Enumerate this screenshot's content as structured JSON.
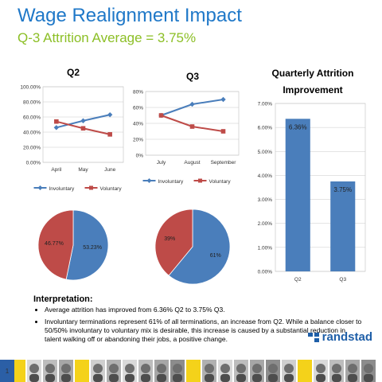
{
  "header": {
    "title": "Wage Realignment Impact",
    "subtitle": "Q-3 Attrition Average = 3.75%"
  },
  "logo": {
    "text": "randstad",
    "color": "#1f5fa8"
  },
  "colors": {
    "title": "#1f78c8",
    "subtitle": "#8cbf26",
    "involuntary": "#4a7ebb",
    "voluntary": "#be4b48"
  },
  "chart_data": [
    {
      "type": "line",
      "title": "Q2",
      "categories": [
        "April",
        "May",
        "June"
      ],
      "series": [
        {
          "name": "Involuntary",
          "values": [
            0.46,
            0.55,
            0.63
          ]
        },
        {
          "name": "Voluntary",
          "values": [
            0.54,
            0.45,
            0.37
          ]
        }
      ],
      "yticks": [
        "0.00%",
        "20.00%",
        "40.00%",
        "60.00%",
        "80.00%",
        "100.00%"
      ],
      "ylim": [
        0,
        1
      ],
      "legend": "bottom",
      "grid": true
    },
    {
      "type": "line",
      "title": "Q3",
      "categories": [
        "July",
        "August",
        "September"
      ],
      "series": [
        {
          "name": "Involuntary",
          "values": [
            0.5,
            0.64,
            0.7
          ]
        },
        {
          "name": "Voluntary",
          "values": [
            0.5,
            0.36,
            0.3
          ]
        }
      ],
      "yticks": [
        "0%",
        "20%",
        "40%",
        "60%",
        "80%"
      ],
      "ylim": [
        0,
        0.8
      ],
      "legend": "bottom",
      "grid": true
    },
    {
      "type": "bar",
      "title": "Quarterly Attrition Improvement",
      "categories": [
        "Q2",
        "Q3"
      ],
      "values": [
        0.0636,
        0.0375
      ],
      "data_labels": [
        "6.36%",
        "3.75%"
      ],
      "yticks": [
        "0.00%",
        "1.00%",
        "2.00%",
        "3.00%",
        "4.00%",
        "5.00%",
        "6.00%",
        "7.00%"
      ],
      "ylim": [
        0,
        0.07
      ],
      "grid": true
    },
    {
      "type": "pie",
      "slices": [
        {
          "name": "Involuntary",
          "value": 53.23,
          "label": "53.23%"
        },
        {
          "name": "Voluntary",
          "value": 46.77,
          "label": "46.77%"
        }
      ]
    },
    {
      "type": "pie",
      "slices": [
        {
          "name": "Involuntary",
          "value": 61,
          "label": "61%"
        },
        {
          "name": "Voluntary",
          "value": 39,
          "label": "39%"
        }
      ]
    }
  ],
  "interpretation": {
    "title": "Interpretation:",
    "bullets": [
      "Average attrition has improved from 6.36% Q2 to 3.75% Q3.",
      "Involuntary terminations represent 61% of all terminations, an increase from Q2.  While a balance closer to 50/50% involuntary to voluntary mix is desirable, this increase is caused by a substantial reduction in talent walking off or abandoning their jobs, a positive change."
    ]
  },
  "footer": {
    "page_number": "1"
  }
}
